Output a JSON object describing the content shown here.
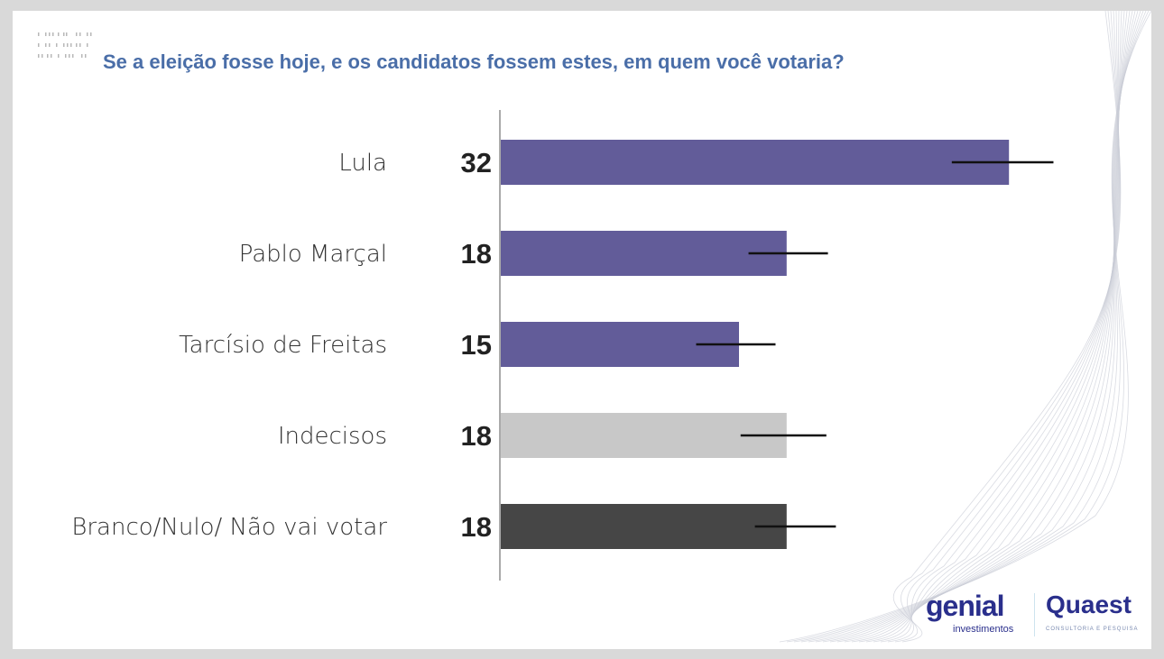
{
  "title": "Se a eleição fosse hoje, e os candidatos fossem estes, em quem você votaria?",
  "logos": {
    "genial": "genial",
    "genial_sub": "investimentos",
    "quaest": "Quaest",
    "quaest_sub": "CONSULTORIA E PESQUISA"
  },
  "chart_data": {
    "type": "bar",
    "orientation": "horizontal",
    "title": "Se a eleição fosse hoje, e os candidatos fossem estes, em quem você votaria?",
    "categories": [
      "Lula",
      "Pablo Marçal",
      "Tarcísio de Freitas",
      "Indecisos",
      "Branco/Nulo/ Não vai votar"
    ],
    "values": [
      32,
      18,
      15,
      18,
      18
    ],
    "value_labels": [
      "32",
      "18",
      "15",
      "18",
      "18"
    ],
    "error_bars": [
      [
        28.4,
        34.8
      ],
      [
        15.6,
        20.6
      ],
      [
        12.3,
        17.3
      ],
      [
        15.1,
        20.5
      ],
      [
        16.0,
        21.1
      ]
    ],
    "colors": [
      "#625c99",
      "#625c99",
      "#625c99",
      "#c8c8c8",
      "#464646"
    ],
    "xlim": [
      0,
      40
    ],
    "grid": false,
    "legend": "none"
  }
}
